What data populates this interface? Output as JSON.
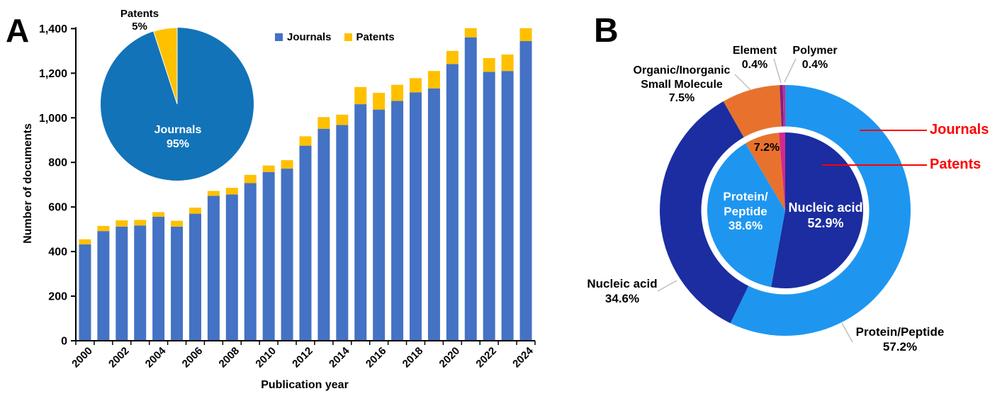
{
  "panelA": {
    "label": "A",
    "y_axis_title": "Number of documents",
    "x_axis_title": "Publication year",
    "legend": [
      {
        "label": "Journals",
        "color": "#4472C4"
      },
      {
        "label": "Patents",
        "color": "#FFC000"
      }
    ],
    "chart_data": {
      "type": "bar",
      "stacked": true,
      "xlabel": "Publication year",
      "ylabel": "Number of documents",
      "ylim": [
        0,
        1400
      ],
      "ytick_values": [
        0,
        200,
        400,
        600,
        800,
        1000,
        1200,
        1400
      ],
      "yticks": [
        "0",
        "200",
        "400",
        "600",
        "800",
        "1,000",
        "1,200",
        "1,400"
      ],
      "categories": [
        2000,
        2001,
        2002,
        2003,
        2004,
        2005,
        2006,
        2007,
        2008,
        2009,
        2010,
        2011,
        2012,
        2013,
        2014,
        2015,
        2016,
        2017,
        2018,
        2019,
        2020,
        2021,
        2022,
        2023,
        2024
      ],
      "xtick_labels": [
        "2000",
        "2002",
        "2004",
        "2006",
        "2008",
        "2010",
        "2012",
        "2014",
        "2016",
        "2018",
        "2020",
        "2022",
        "2024"
      ],
      "series": [
        {
          "name": "Journals",
          "color": "#4472C4",
          "values": [
            432,
            492,
            512,
            517,
            556,
            512,
            570,
            650,
            656,
            707,
            757,
            772,
            875,
            951,
            968,
            1061,
            1037,
            1076,
            1114,
            1132,
            1241,
            1361,
            1206,
            1210,
            1344
          ]
        },
        {
          "name": "Patents",
          "color": "#FFC000",
          "values": [
            23,
            23,
            28,
            25,
            21,
            26,
            27,
            22,
            30,
            37,
            29,
            38,
            42,
            52,
            46,
            77,
            75,
            72,
            64,
            78,
            59,
            41,
            62,
            74,
            58
          ]
        }
      ]
    },
    "inset_pie": {
      "type": "pie",
      "slices": [
        {
          "label": "Journals",
          "pct": 95,
          "color": "#1273B8"
        },
        {
          "label": "Patents",
          "pct": 5,
          "color": "#FFC000"
        }
      ],
      "journals_label": {
        "line1": "Journals",
        "line2": "95%"
      },
      "patents_label": {
        "line1": "Patents",
        "line2": "5%"
      }
    }
  },
  "panelB": {
    "label": "B",
    "chart_data": {
      "type": "pie",
      "rings": [
        {
          "name": "Journals",
          "position": "outer",
          "slices": [
            {
              "label": "Protein/Peptide",
              "pct": 57.2,
              "color": "#1E96F0"
            },
            {
              "label": "Nucleic acid",
              "pct": 34.6,
              "color": "#1B2DA0"
            },
            {
              "label": "Organic/Inorganic Small Molecule",
              "pct": 7.5,
              "color": "#E8722D"
            },
            {
              "label": "Element",
              "pct": 0.4,
              "color": "#7A2182"
            },
            {
              "label": "Polymer",
              "pct": 0.4,
              "color": "#D4288E"
            }
          ]
        },
        {
          "name": "Patents",
          "position": "inner",
          "slices": [
            {
              "label": "Nucleic acid",
              "pct": 52.9,
              "color": "#1B2DA0"
            },
            {
              "label": "Protein/Peptide",
              "pct": 38.6,
              "color": "#1E96F0"
            },
            {
              "label": "Organic/Inorganic Small Molecule",
              "pct": 7.2,
              "color": "#E8722D"
            },
            {
              "label": "",
              "pct": 1.3,
              "color": "#D4288E"
            }
          ]
        }
      ]
    },
    "callouts": {
      "element": {
        "line1": "Element",
        "line2": "0.4%"
      },
      "polymer": {
        "line1": "Polymer",
        "line2": "0.4%"
      },
      "org_inorg": {
        "line1": "Organic/Inorganic",
        "line2": "Small Molecule",
        "line3": "7.5%"
      },
      "nucleic_outer": {
        "line1": "Nucleic acid",
        "line2": "34.6%"
      },
      "protein_outer": {
        "line1": "Protein/Peptide",
        "line2": "57.2%"
      },
      "inner_protein": {
        "line1": "Protein/",
        "line2": "Peptide",
        "line3": "38.6%"
      },
      "inner_nucleic": {
        "line1": "Nucleic acid",
        "line2": "52.9%"
      },
      "inner_org_pct": "7.2%",
      "journals_arrow": "Journals",
      "patents_arrow": "Patents",
      "arrow_color": "#FF0000",
      "leader_color": "#BFBFBF"
    }
  }
}
